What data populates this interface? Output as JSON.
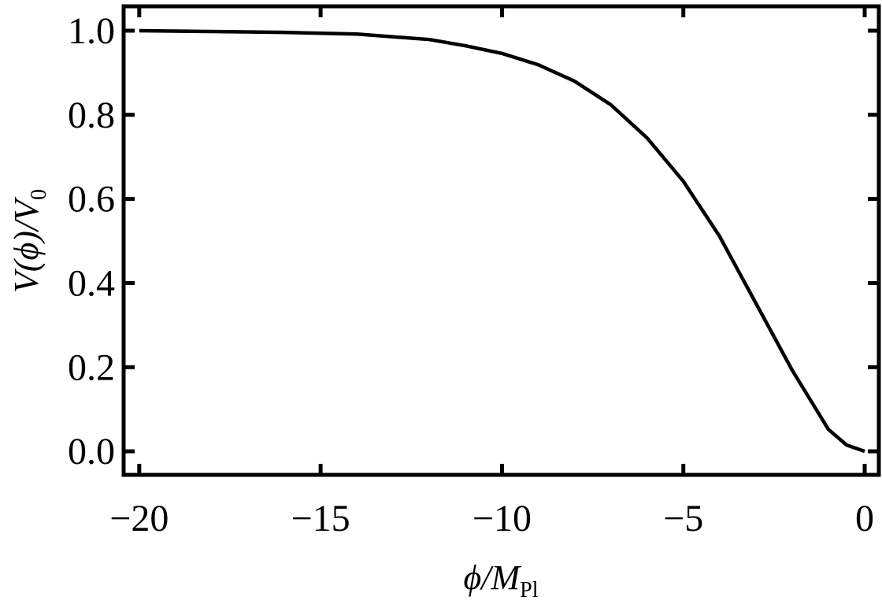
{
  "chart_data": {
    "type": "line",
    "x": [
      -20,
      -18,
      -16,
      -14,
      -12,
      -11,
      -10,
      -9,
      -8,
      -7,
      -6,
      -5,
      -4,
      -3,
      -2,
      -1,
      -0.5,
      0
    ],
    "values": [
      1.0,
      0.998,
      0.996,
      0.992,
      0.979,
      0.964,
      0.946,
      0.919,
      0.88,
      0.824,
      0.745,
      0.642,
      0.511,
      0.352,
      0.193,
      0.052,
      0.015,
      0
    ],
    "color": "#000000",
    "xlim": [
      -20.43,
      0.39
    ],
    "ylim": [
      -0.056,
      1.058
    ],
    "xticks": [
      {
        "value": -20,
        "label": "−20"
      },
      {
        "value": -15,
        "label": "−15"
      },
      {
        "value": -10,
        "label": "−10"
      },
      {
        "value": -5,
        "label": "−5"
      },
      0
    ],
    "yticks": [
      {
        "value": 0,
        "label": "0.0"
      },
      0.2,
      0.4,
      0.6,
      0.8,
      {
        "value": 1,
        "label": "1.0"
      }
    ],
    "xlabel": {
      "main": "ϕ/M",
      "sub": "Pl"
    },
    "ylabel": {
      "main": "V(ϕ)/V",
      "sub": "0"
    },
    "grid": false
  }
}
